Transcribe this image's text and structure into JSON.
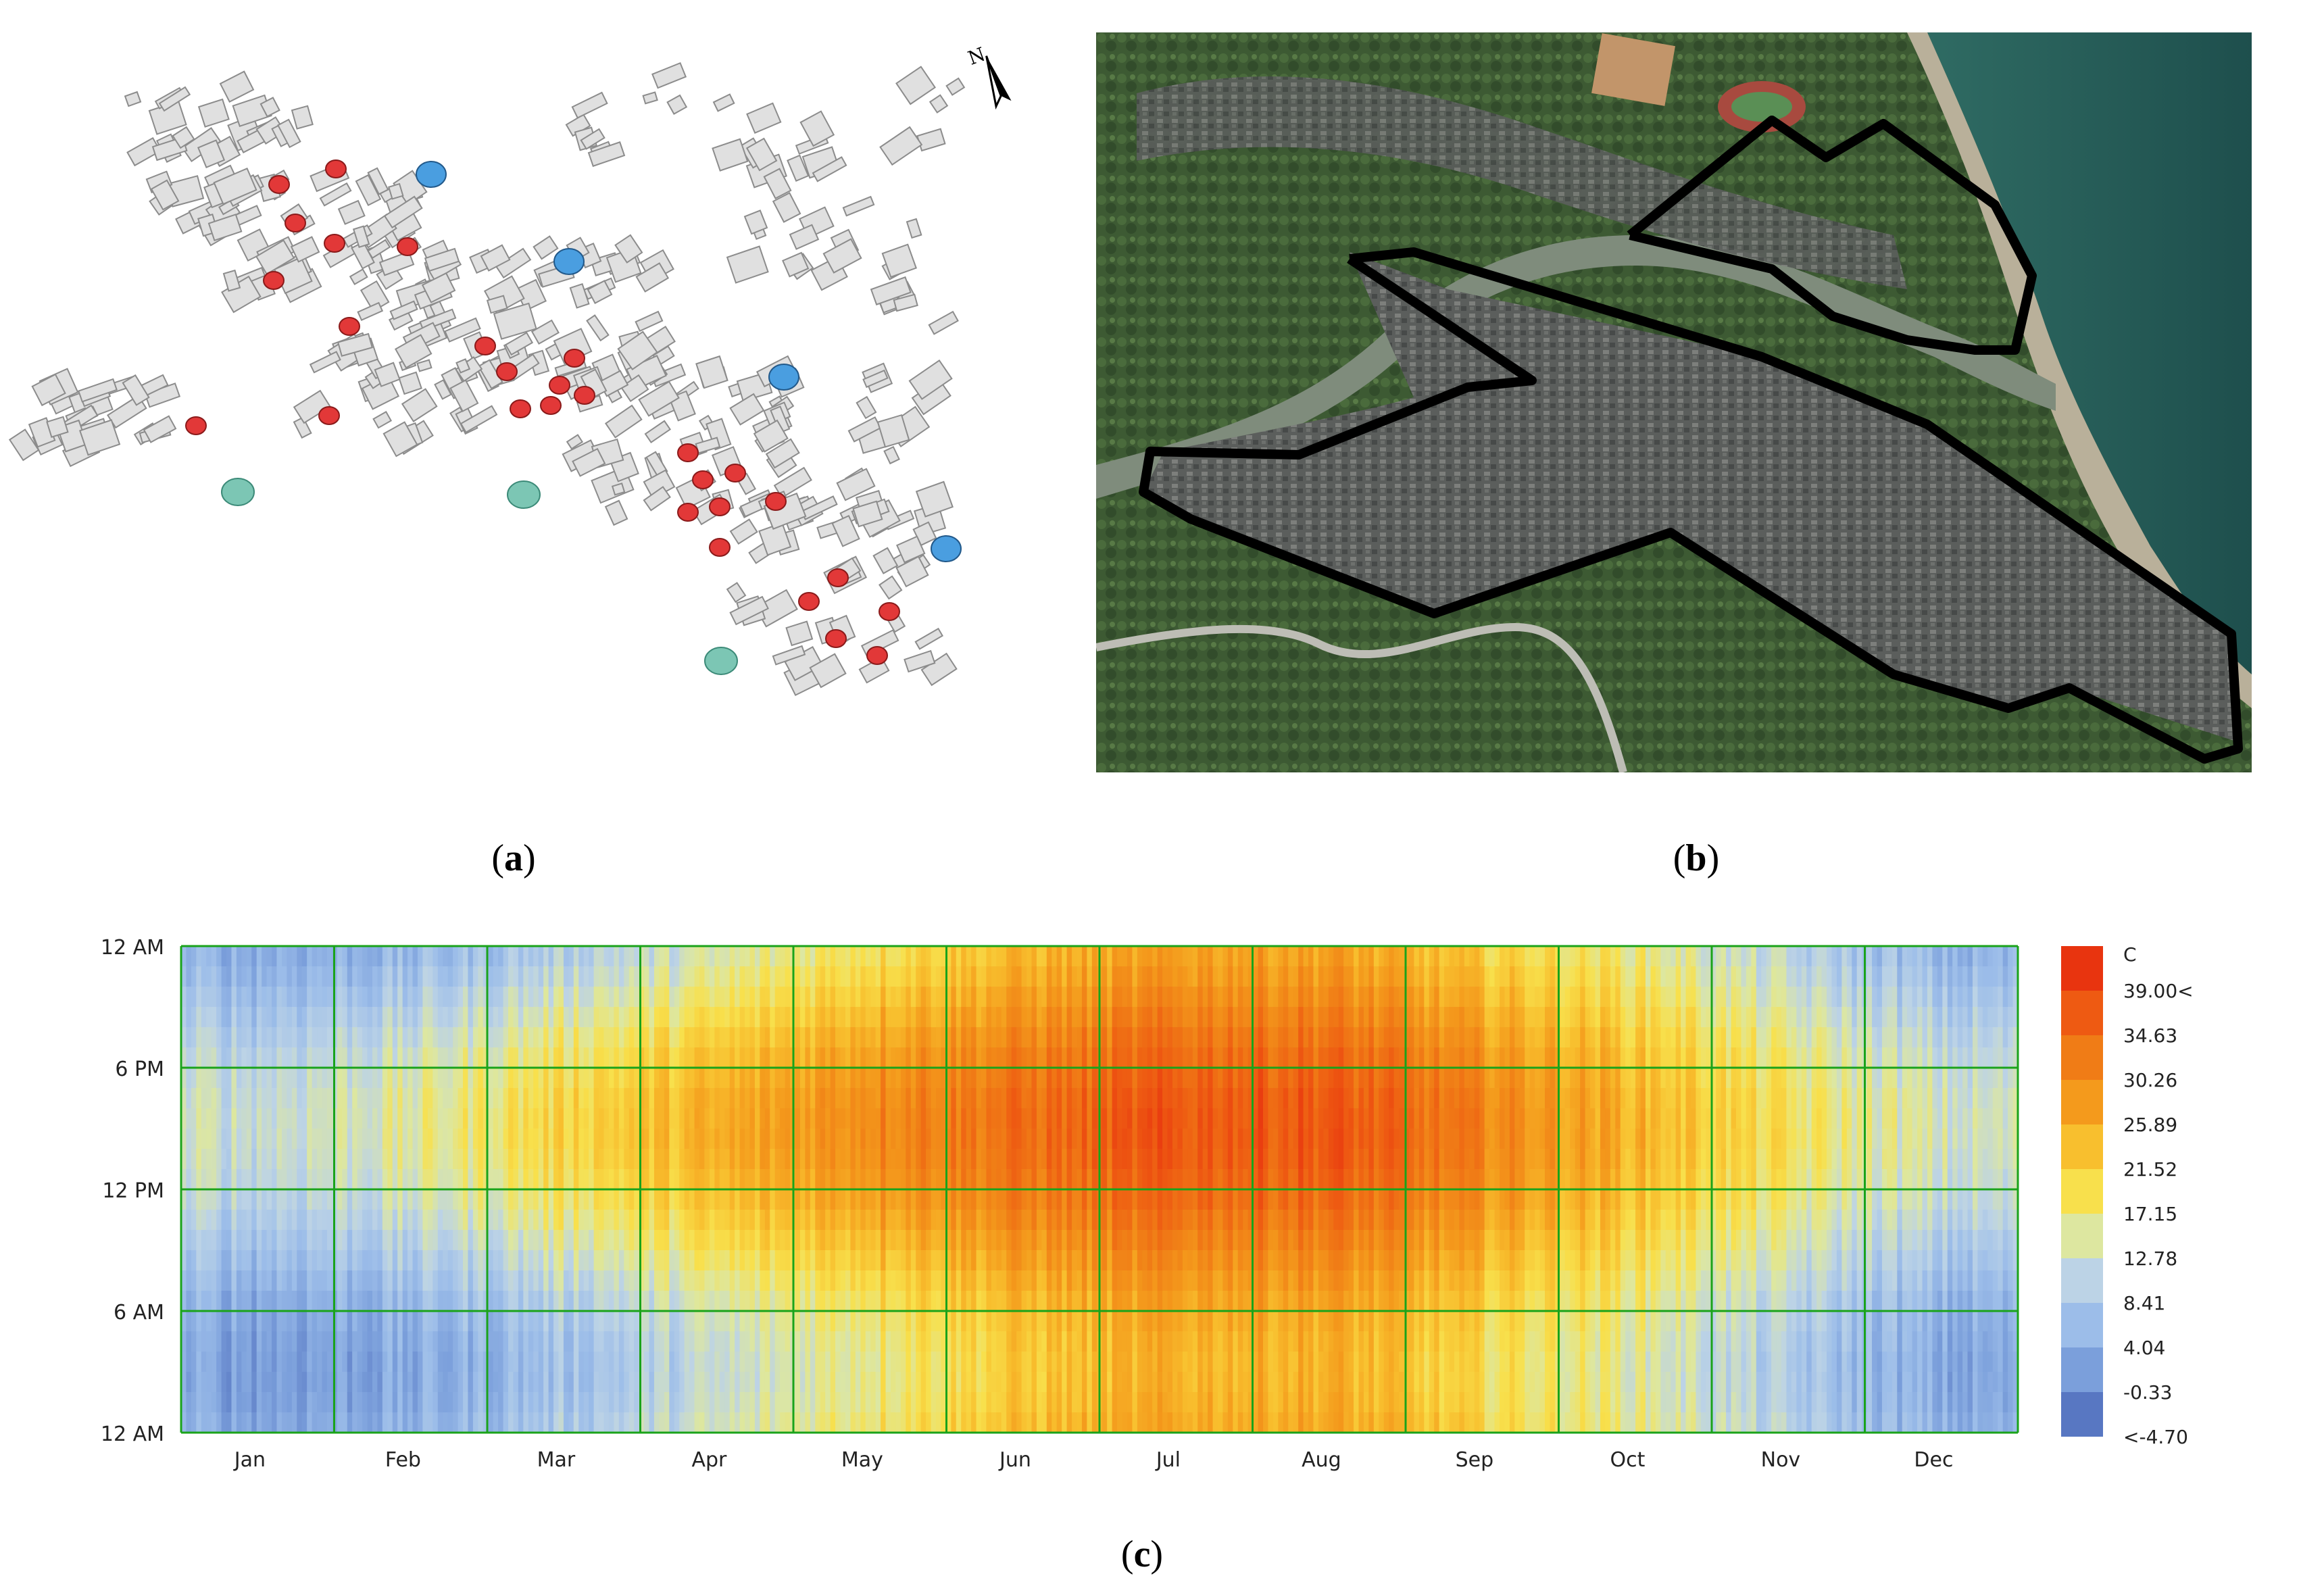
{
  "panels": {
    "a": {
      "caption_letter": "a",
      "north_label": "N"
    },
    "b": {
      "caption_letter": "b"
    },
    "c": {
      "caption_letter": "c"
    }
  },
  "colors": {
    "building_fill": "#e0e0e0",
    "building_stroke": "#8c8c8c",
    "red_marker": "#e23838",
    "blue_marker": "#4a9ee0",
    "teal_marker": "#7cc6b4",
    "grid_line": "#1aa31a",
    "outline": "#000000"
  },
  "chart_data": {
    "type": "heatmap",
    "title": "",
    "xlabel": "",
    "ylabel": "",
    "unit": "C",
    "x_categories": [
      "Jan",
      "Feb",
      "Mar",
      "Apr",
      "May",
      "Jun",
      "Jul",
      "Aug",
      "Sep",
      "Oct",
      "Nov",
      "Dec"
    ],
    "y_ticks": [
      "12 AM",
      "6 PM",
      "12 PM",
      "6 AM",
      "12 AM"
    ],
    "legend_labels": [
      "39.00<",
      "34.63",
      "30.26",
      "25.89",
      "21.52",
      "17.15",
      "12.78",
      "8.41",
      "4.04",
      "-0.33",
      "<-4.70"
    ],
    "legend_colors": [
      "#e8340f",
      "#ee5a12",
      "#f07c16",
      "#f49a1c",
      "#f8bf2e",
      "#f8e04c",
      "#dde7a0",
      "#bcd3e6",
      "#9cbde9",
      "#7b9fdb",
      "#5877c2"
    ],
    "value_range": [
      -4.7,
      39.0
    ],
    "monthly_mean_temp": [
      5,
      7,
      12,
      16,
      22,
      26,
      29,
      29,
      23,
      18,
      11,
      6
    ],
    "daily_amplitude": [
      5,
      6,
      7,
      7,
      7,
      6,
      6,
      6,
      6,
      5,
      5,
      5
    ],
    "grid": true,
    "legend_position": "right"
  }
}
